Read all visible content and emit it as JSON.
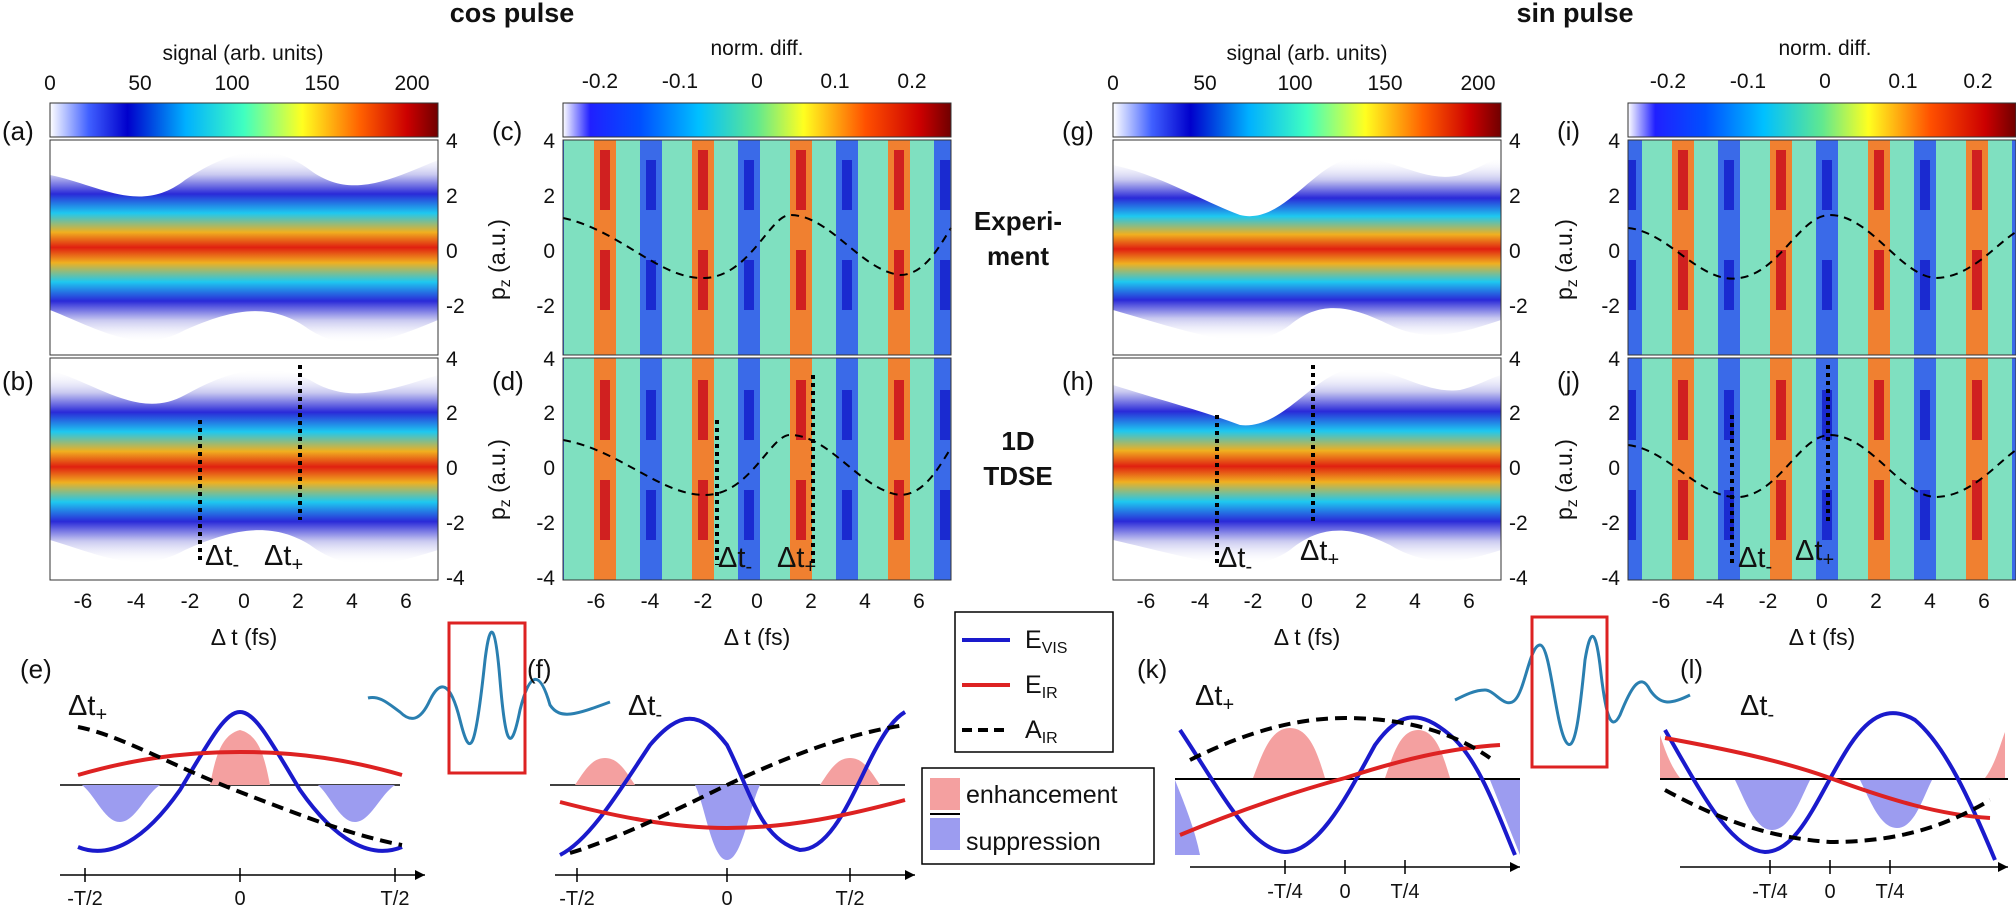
{
  "headings": {
    "cos": "cos pulse",
    "sin": "sin pulse"
  },
  "colorbar_labels": {
    "signal": "signal (arb. units)",
    "diff": "norm. diff."
  },
  "colorbar_ticks": {
    "signal": [
      "0",
      "50",
      "100",
      "150",
      "200"
    ],
    "diff": [
      "-0.2",
      "-0.1",
      "0",
      "0.1",
      "0.2"
    ]
  },
  "panel_labels": {
    "a": "(a)",
    "b": "(b)",
    "c": "(c)",
    "d": "(d)",
    "e": "(e)",
    "f": "(f)",
    "g": "(g)",
    "h": "(h)",
    "i": "(i)",
    "j": "(j)",
    "k": "(k)",
    "l": "(l)"
  },
  "row_labels": {
    "exp_1": "Experi-",
    "exp_2": "ment",
    "tdse_1": "1D",
    "tdse_2": "TDSE"
  },
  "axes": {
    "x_label": "Δ t (fs)",
    "y_label": "p",
    "y_sub": "z",
    "y_unit": " (a.u.)"
  },
  "x_ticks": [
    "-6",
    "-4",
    "-2",
    "0",
    "2",
    "4",
    "6"
  ],
  "y_ticks": [
    "4",
    "2",
    "0",
    "-2",
    "-4"
  ],
  "delay_marks": {
    "plus": "Δt",
    "plus_sub": "+",
    "minus": "Δt",
    "minus_sub": "-"
  },
  "legend": {
    "vis": "E",
    "vis_sub": "VIS",
    "ir": "E",
    "ir_sub": "IR",
    "air": "A",
    "air_sub": "IR",
    "enh": "enhancement",
    "sup": "suppression"
  },
  "phase_ticks_cos": [
    "-T/2",
    "0",
    "T/2"
  ],
  "phase_ticks_sin": [
    "-T/4",
    "0",
    "T/4"
  ],
  "colors": {
    "vis": "#1a1acc",
    "ir": "#dd2222",
    "enh": "#f4a0a0",
    "sup": "#9c9cf0",
    "pulse": "#2a7fb0",
    "box": "#dd2222"
  }
}
